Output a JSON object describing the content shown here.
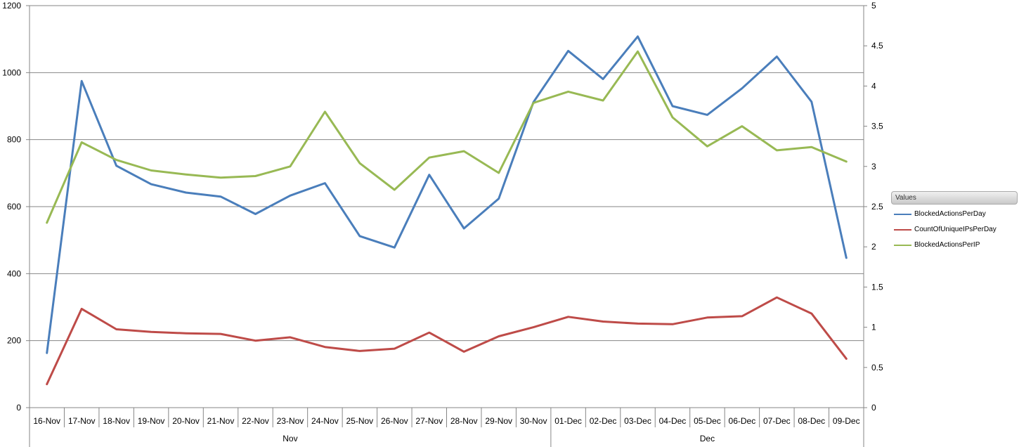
{
  "chart_data": {
    "type": "line",
    "categories": [
      "16-Nov",
      "17-Nov",
      "18-Nov",
      "19-Nov",
      "20-Nov",
      "21-Nov",
      "22-Nov",
      "23-Nov",
      "24-Nov",
      "25-Nov",
      "26-Nov",
      "27-Nov",
      "28-Nov",
      "29-Nov",
      "30-Nov",
      "01-Dec",
      "02-Dec",
      "03-Dec",
      "04-Dec",
      "05-Dec",
      "06-Dec",
      "07-Dec",
      "08-Dec",
      "09-Dec"
    ],
    "groups": [
      {
        "label": "Nov",
        "count": 15
      },
      {
        "label": "Dec",
        "count": 9
      }
    ],
    "y_left": {
      "min": 0,
      "max": 1200,
      "ticks": [
        "0",
        "200",
        "400",
        "600",
        "800",
        "1000",
        "1200"
      ]
    },
    "y_right": {
      "min": 0,
      "max": 5,
      "ticks": [
        "0",
        "0.5",
        "1",
        "1.5",
        "2",
        "2.5",
        "3",
        "3.5",
        "4",
        "4.5",
        "5"
      ]
    },
    "grid": true,
    "legend_position": "right",
    "series": [
      {
        "name": "BlockedActionsPerDay",
        "axis": "left",
        "color": "#4a7ebb",
        "values": [
          163,
          975,
          722,
          667,
          642,
          630,
          578,
          633,
          670,
          512,
          478,
          695,
          535,
          624,
          912,
          1065,
          981,
          1108,
          900,
          874,
          953,
          1048,
          913,
          447
        ]
      },
      {
        "name": "CountOfUniqueIPsPerDay",
        "axis": "left",
        "color": "#be4b48",
        "values": [
          70,
          295,
          234,
          226,
          222,
          220,
          200,
          210,
          181,
          169,
          176,
          224,
          167,
          213,
          240,
          271,
          257,
          251,
          249,
          269,
          273,
          329,
          281,
          146
        ]
      },
      {
        "name": "BlockedActionsPerIP",
        "axis": "right",
        "color": "#98b954",
        "values": [
          2.3,
          3.3,
          3.08,
          2.95,
          2.9,
          2.86,
          2.88,
          3.0,
          3.68,
          3.04,
          2.71,
          3.11,
          3.19,
          2.92,
          3.79,
          3.93,
          3.82,
          4.43,
          3.61,
          3.25,
          3.5,
          3.2,
          3.24,
          3.06
        ]
      }
    ]
  },
  "legend": {
    "title": "Values"
  }
}
